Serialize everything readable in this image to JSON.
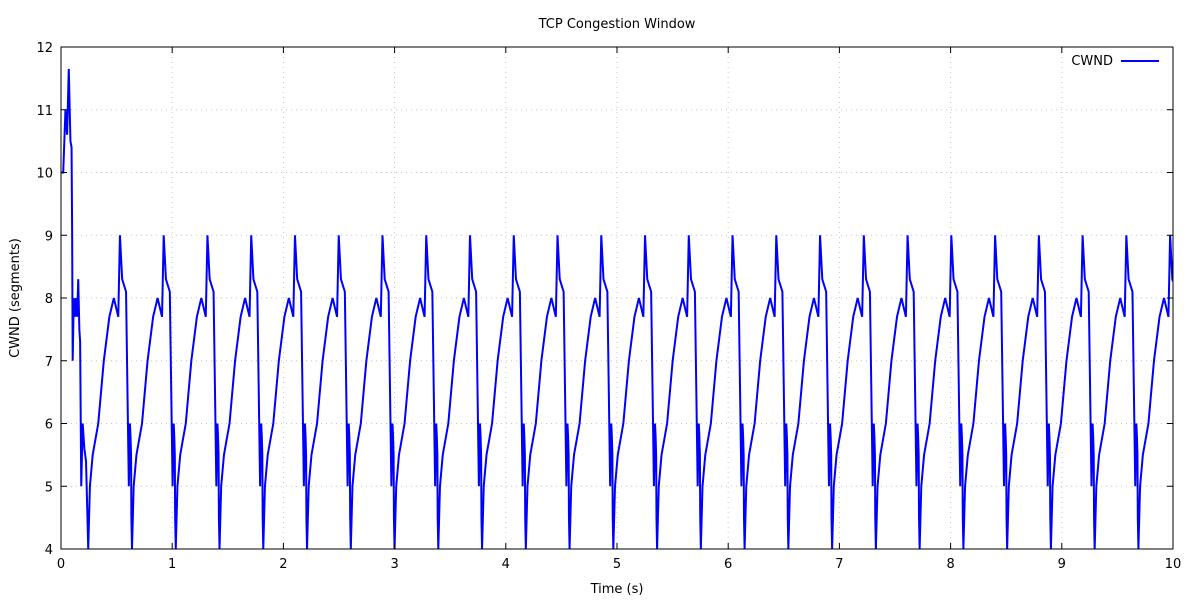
{
  "chart_data": {
    "type": "line",
    "title": "TCP Congestion Window",
    "xlabel": "Time (s)",
    "ylabel": "CWND (segments)",
    "xlim": [
      0,
      10
    ],
    "ylim": [
      4,
      12
    ],
    "xticks": [
      0,
      1,
      2,
      3,
      4,
      5,
      6,
      7,
      8,
      9,
      10
    ],
    "yticks": [
      4,
      5,
      6,
      7,
      8,
      9,
      10,
      11,
      12
    ],
    "grid": true,
    "legend": {
      "position": "top-right"
    },
    "series": [
      {
        "name": "CWND",
        "color": "#0000ff",
        "initial": {
          "x": [
            0.0,
            0.02,
            0.04,
            0.055,
            0.07,
            0.085,
            0.095,
            0.1,
            0.105,
            0.115,
            0.125,
            0.135,
            0.145,
            0.155,
            0.165,
            0.172,
            0.182,
            0.195,
            0.21,
            0.225,
            0.245
          ],
          "y": [
            10,
            10,
            11,
            10.6,
            11.65,
            10.5,
            10.4,
            9.1,
            7,
            8.0,
            7.7,
            8.0,
            7.7,
            8.3,
            7.5,
            7.3,
            5.0,
            6.0,
            5.6,
            5.4,
            4.0
          ]
        },
        "period": 0.3935,
        "cycles": 24,
        "cycle_offsets": [
          0.0,
          0.015,
          0.04,
          0.09,
          0.14,
          0.19,
          0.23,
          0.27,
          0.285,
          0.305,
          0.34,
          0.365,
          0.375,
          0.38,
          0.385,
          0.388,
          0.3935
        ],
        "cycle_values": [
          4,
          5,
          5.5,
          6,
          7,
          7.7,
          8,
          7.7,
          9,
          8.3,
          8.1,
          5.0,
          6.0,
          5.8,
          5.5,
          4.5,
          4
        ]
      }
    ]
  }
}
